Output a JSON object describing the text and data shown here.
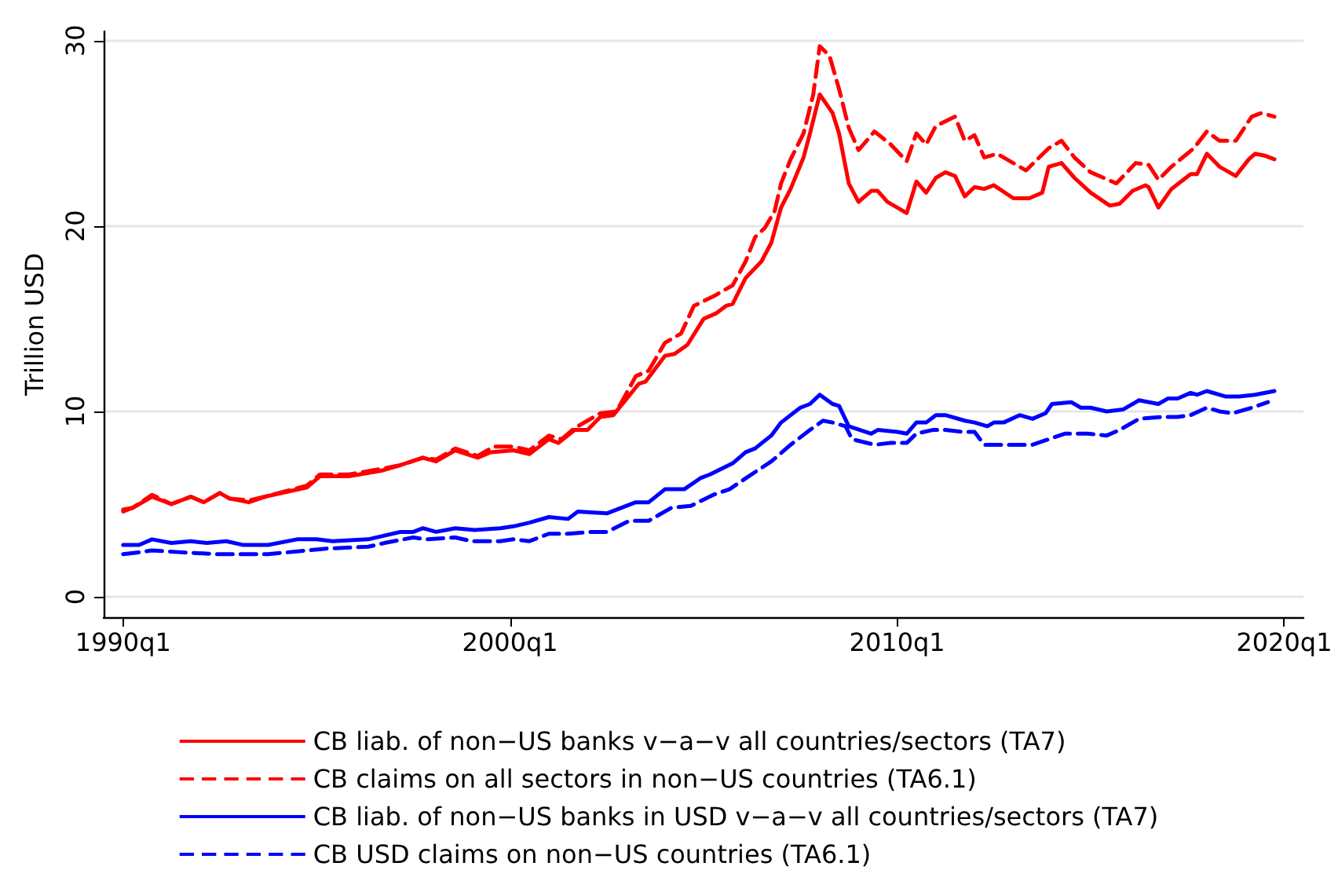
{
  "chart_data": {
    "type": "line",
    "ylabel": "Trillion USD",
    "xlim": [
      "1989-07",
      "2020-07"
    ],
    "xticks": [
      {
        "value": "1990-01",
        "label": "1990q1"
      },
      {
        "value": "2000-01",
        "label": "2000q1"
      },
      {
        "value": "2010-01",
        "label": "2010q1"
      },
      {
        "value": "2020-01",
        "label": "2020q1"
      }
    ],
    "ylim": [
      -1.1,
      30.5
    ],
    "yticks": [
      0,
      10,
      20,
      30
    ],
    "grid": "y",
    "legend": "bottom",
    "marker": "none",
    "series": [
      {
        "name": "CB liab. of non−US banks v−a−v all countries/sectors (TA7)",
        "color": "#ff0000",
        "line_style": "solid",
        "x": [
          "1990-01",
          "1990-04",
          "1990-10",
          "1991-04",
          "1991-10",
          "1992-02",
          "1992-07",
          "1992-10",
          "1993-04",
          "1993-09",
          "1994-10",
          "1995-02",
          "1995-11",
          "1996-09",
          "1997-03",
          "1997-10",
          "1998-02",
          "1998-08",
          "1999-03",
          "1999-07",
          "2000-02",
          "2000-07",
          "2001-01",
          "2001-04",
          "2001-09",
          "2002-01",
          "2002-05",
          "2002-09",
          "2003-05",
          "2003-07",
          "2004-01",
          "2004-04",
          "2004-08",
          "2005-01",
          "2005-05",
          "2005-08",
          "2005-10",
          "2006-02",
          "2006-07",
          "2006-10",
          "2007-01",
          "2007-04",
          "2007-08",
          "2007-10",
          "2008-01",
          "2008-05",
          "2008-07",
          "2008-10",
          "2009-01",
          "2009-05",
          "2009-07",
          "2009-10",
          "2010-04",
          "2010-07",
          "2010-10",
          "2011-01",
          "2011-04",
          "2011-07",
          "2011-10",
          "2012-01",
          "2012-04",
          "2012-07",
          "2013-01",
          "2013-06",
          "2013-10",
          "2013-12",
          "2014-04",
          "2014-08",
          "2015-01",
          "2015-07",
          "2015-10",
          "2016-02",
          "2016-06",
          "2016-07",
          "2016-10",
          "2017-02",
          "2017-08",
          "2017-10",
          "2018-01",
          "2018-05",
          "2018-10",
          "2019-02",
          "2019-04",
          "2019-07",
          "2019-10"
        ],
        "values": [
          4.7,
          4.8,
          5.4,
          5.0,
          5.4,
          5.1,
          5.6,
          5.3,
          5.1,
          5.4,
          5.9,
          6.5,
          6.5,
          6.8,
          7.1,
          7.5,
          7.3,
          7.9,
          7.5,
          7.8,
          7.9,
          7.7,
          8.5,
          8.3,
          9.0,
          9.0,
          9.7,
          9.8,
          11.5,
          11.6,
          13.0,
          13.1,
          13.6,
          15.0,
          15.3,
          15.7,
          15.8,
          17.2,
          18.1,
          19.1,
          21.0,
          22.0,
          23.7,
          25.0,
          27.1,
          26.1,
          25.0,
          22.3,
          21.3,
          21.9,
          21.9,
          21.3,
          20.7,
          22.4,
          21.8,
          22.6,
          22.9,
          22.7,
          21.6,
          22.1,
          22.0,
          22.2,
          21.5,
          21.5,
          21.8,
          23.2,
          23.4,
          22.6,
          21.8,
          21.1,
          21.2,
          21.9,
          22.2,
          22.1,
          21.0,
          22.0,
          22.8,
          22.8,
          23.9,
          23.2,
          22.7,
          23.6,
          23.9,
          23.8,
          23.6
        ]
      },
      {
        "name": "CB claims on all sectors in non−US countries (TA6.1)",
        "color": "#ff0000",
        "line_style": "dashed",
        "x": [
          "1990-01",
          "1990-04",
          "1990-10",
          "1991-04",
          "1991-10",
          "1992-02",
          "1992-07",
          "1992-10",
          "1993-04",
          "1993-09",
          "1994-10",
          "1995-02",
          "1995-11",
          "1996-09",
          "1997-03",
          "1997-10",
          "1998-02",
          "1998-08",
          "1999-03",
          "1999-08",
          "2000-02",
          "2000-07",
          "2001-01",
          "2001-05",
          "2001-09",
          "2002-05",
          "2002-10",
          "2003-04",
          "2003-08",
          "2004-01",
          "2004-06",
          "2004-10",
          "2005-04",
          "2005-10",
          "2006-02",
          "2006-05",
          "2006-08",
          "2006-11",
          "2007-01",
          "2007-04",
          "2007-08",
          "2007-11",
          "2008-01",
          "2008-04",
          "2008-07",
          "2008-10",
          "2009-01",
          "2009-06",
          "2009-11",
          "2010-04",
          "2010-07",
          "2010-10",
          "2011-01",
          "2011-07",
          "2011-10",
          "2012-01",
          "2012-04",
          "2012-08",
          "2013-05",
          "2013-12",
          "2014-04",
          "2014-08",
          "2015-01",
          "2015-09",
          "2016-03",
          "2016-07",
          "2016-10",
          "2017-02",
          "2017-09",
          "2018-01",
          "2018-05",
          "2018-10",
          "2019-03",
          "2019-06",
          "2019-10"
        ],
        "values": [
          4.6,
          4.8,
          5.5,
          5.0,
          5.4,
          5.1,
          5.6,
          5.3,
          5.2,
          5.4,
          6.0,
          6.6,
          6.6,
          6.9,
          7.1,
          7.5,
          7.4,
          8.0,
          7.6,
          8.1,
          8.1,
          7.9,
          8.7,
          8.5,
          9.1,
          9.9,
          10.0,
          11.9,
          12.2,
          13.7,
          14.2,
          15.7,
          16.2,
          16.8,
          18.1,
          19.4,
          19.9,
          20.8,
          22.3,
          23.6,
          25.0,
          27.1,
          29.7,
          29.2,
          27.4,
          25.3,
          24.1,
          25.1,
          24.4,
          23.5,
          25.0,
          24.4,
          25.4,
          25.9,
          24.6,
          24.9,
          23.7,
          23.9,
          23.0,
          24.2,
          24.6,
          23.7,
          22.9,
          22.3,
          23.4,
          23.3,
          22.5,
          23.2,
          24.2,
          25.1,
          24.6,
          24.6,
          25.9,
          26.1,
          25.9
        ]
      },
      {
        "name": "CB liab. of non−US banks in USD v−a−v all countries/sectors (TA7)",
        "color": "#0000ff",
        "line_style": "solid",
        "x": [
          "1990-01",
          "1990-06",
          "1990-10",
          "1991-04",
          "1991-10",
          "1992-03",
          "1992-09",
          "1993-02",
          "1993-10",
          "1994-07",
          "1995-01",
          "1995-06",
          "1996-05",
          "1997-03",
          "1997-07",
          "1997-10",
          "1998-02",
          "1998-08",
          "1999-02",
          "1999-10",
          "2000-02",
          "2000-07",
          "2001-01",
          "2001-07",
          "2001-10",
          "2002-07",
          "2003-04",
          "2003-08",
          "2004-01",
          "2004-07",
          "2004-12",
          "2005-03",
          "2005-10",
          "2006-02",
          "2006-05",
          "2006-10",
          "2007-01",
          "2007-07",
          "2007-10",
          "2008-01",
          "2008-05",
          "2008-07",
          "2008-10",
          "2009-05",
          "2009-07",
          "2010-01",
          "2010-04",
          "2010-07",
          "2010-10",
          "2011-01",
          "2011-04",
          "2011-10",
          "2012-01",
          "2012-05",
          "2012-07",
          "2012-10",
          "2013-03",
          "2013-07",
          "2013-11",
          "2014-01",
          "2014-07",
          "2014-10",
          "2015-01",
          "2015-06",
          "2015-11",
          "2016-04",
          "2016-10",
          "2017-01",
          "2017-04",
          "2017-08",
          "2017-10",
          "2018-01",
          "2018-07",
          "2018-11",
          "2019-04",
          "2019-10"
        ],
        "values": [
          2.8,
          2.8,
          3.1,
          2.9,
          3.0,
          2.9,
          3.0,
          2.8,
          2.8,
          3.1,
          3.1,
          3.0,
          3.1,
          3.5,
          3.5,
          3.7,
          3.5,
          3.7,
          3.6,
          3.7,
          3.8,
          4.0,
          4.3,
          4.2,
          4.6,
          4.5,
          5.1,
          5.1,
          5.8,
          5.8,
          6.4,
          6.6,
          7.2,
          7.8,
          8.0,
          8.7,
          9.4,
          10.2,
          10.4,
          10.9,
          10.4,
          10.3,
          9.2,
          8.8,
          9.0,
          8.9,
          8.8,
          9.4,
          9.4,
          9.8,
          9.8,
          9.5,
          9.4,
          9.2,
          9.4,
          9.4,
          9.8,
          9.6,
          9.9,
          10.4,
          10.5,
          10.2,
          10.2,
          10.0,
          10.1,
          10.6,
          10.4,
          10.7,
          10.7,
          11.0,
          10.9,
          11.1,
          10.8,
          10.8,
          10.9,
          11.1
        ]
      },
      {
        "name": "CB USD claims on non−US countries (TA6.1)",
        "color": "#0000ff",
        "line_style": "dashed",
        "x": [
          "1990-01",
          "1990-06",
          "1990-10",
          "1991-07",
          "1992-06",
          "1993-06",
          "1993-10",
          "1994-10",
          "1995-04",
          "1996-05",
          "1996-10",
          "1997-07",
          "1997-11",
          "1998-08",
          "1999-01",
          "1999-10",
          "2000-02",
          "2000-07",
          "2001-01",
          "2001-07",
          "2002-02",
          "2002-07",
          "2003-02",
          "2003-08",
          "2004-03",
          "2004-09",
          "2005-04",
          "2005-09",
          "2006-03",
          "2006-10",
          "2007-04",
          "2007-10",
          "2008-02",
          "2008-05",
          "2008-09",
          "2008-11",
          "2009-06",
          "2009-11",
          "2010-04",
          "2010-07",
          "2010-12",
          "2011-04",
          "2011-09",
          "2012-01",
          "2012-04",
          "2012-08",
          "2013-07",
          "2013-12",
          "2014-05",
          "2014-12",
          "2015-06",
          "2015-10",
          "2016-04",
          "2016-11",
          "2017-04",
          "2017-08",
          "2018-01",
          "2018-05",
          "2018-09",
          "2019-03",
          "2019-08"
        ],
        "values": [
          2.3,
          2.4,
          2.5,
          2.4,
          2.3,
          2.3,
          2.3,
          2.5,
          2.6,
          2.7,
          2.9,
          3.2,
          3.1,
          3.2,
          3.0,
          3.0,
          3.1,
          3.0,
          3.4,
          3.4,
          3.5,
          3.5,
          4.1,
          4.1,
          4.8,
          4.9,
          5.5,
          5.8,
          6.5,
          7.3,
          8.2,
          9.0,
          9.5,
          9.4,
          9.2,
          8.5,
          8.2,
          8.3,
          8.3,
          8.8,
          9.0,
          9.0,
          8.9,
          8.9,
          8.2,
          8.2,
          8.2,
          8.5,
          8.8,
          8.8,
          8.7,
          9.0,
          9.6,
          9.7,
          9.7,
          9.8,
          10.2,
          10.0,
          9.9,
          10.2,
          10.5
        ]
      }
    ]
  }
}
